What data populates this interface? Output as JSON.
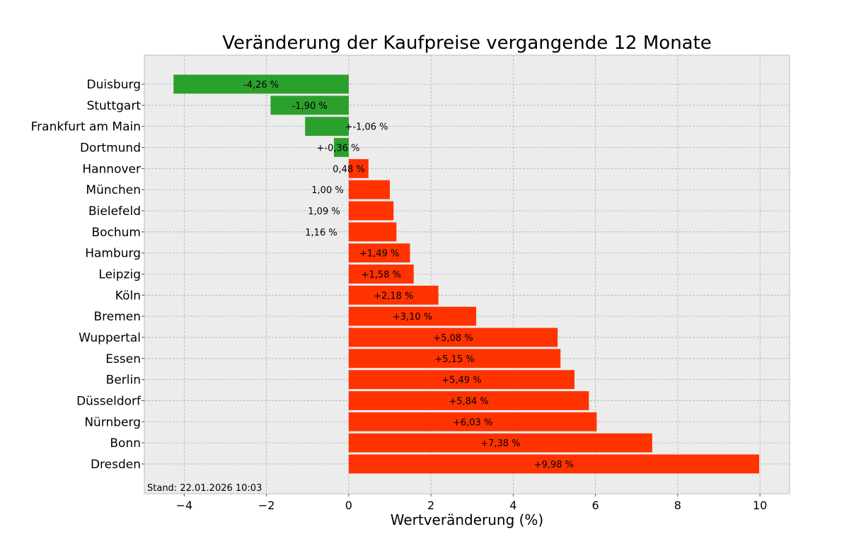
{
  "chart_data": {
    "type": "bar",
    "orientation": "horizontal",
    "title": "Veränderung der Kaufpreise vergangende 12 Monate",
    "xlabel": "Wertveränderung (%)",
    "ylabel": "",
    "xlim": [
      -4.97,
      10.72
    ],
    "xticks": [
      -4,
      -2,
      0,
      2,
      4,
      6,
      8,
      10
    ],
    "xtick_labels": [
      "−4",
      "−2",
      "0",
      "2",
      "4",
      "6",
      "8",
      "10"
    ],
    "grid": true,
    "categories": [
      "Duisburg",
      "Stuttgart",
      "Frankfurt am Main",
      "Dortmund",
      "Hannover",
      "München",
      "Bielefeld",
      "Bochum",
      "Hamburg",
      "Leipzig",
      "Köln",
      "Bremen",
      "Wuppertal",
      "Essen",
      "Berlin",
      "Düsseldorf",
      "Nürnberg",
      "Bonn",
      "Dresden"
    ],
    "values": [
      -4.26,
      -1.9,
      -1.06,
      -0.36,
      0.48,
      1.0,
      1.09,
      1.16,
      1.49,
      1.58,
      2.18,
      3.1,
      5.08,
      5.15,
      5.49,
      5.84,
      6.03,
      7.38,
      9.98
    ],
    "data_labels": [
      "-4,26 %",
      "-1,90 %",
      "+-1,06 %",
      "+-0,36 %",
      "0,48 %",
      "1,00 %",
      "1,09 %",
      "1,16 %",
      "+1,49 %",
      "+1,58 %",
      "+2,18 %",
      "+3,10 %",
      "+5,08 %",
      "+5,15 %",
      "+5,49 %",
      "+5,84 %",
      "+6,03 %",
      "+7,38 %",
      "+9,98 %"
    ],
    "colors": {
      "negative": "#2ca02c",
      "positive": "#ff3300"
    },
    "annotation": "Stand: 22.01.2026 10:03"
  }
}
